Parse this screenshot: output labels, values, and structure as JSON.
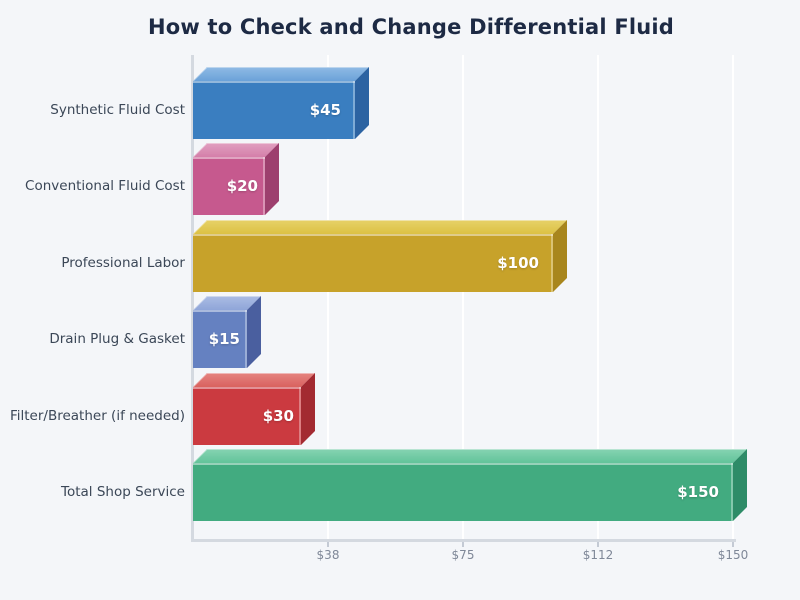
{
  "title": "How to Check and Change Differential Fluid",
  "background_color": "#f4f6f9",
  "title_color": "#1d2a44",
  "category_label_color": "#3b4757",
  "tick_label_color": "#7f8898",
  "gridline_color": "#ffffff",
  "axis_line_color": "#d4d9e0",
  "chart_data": {
    "type": "bar",
    "orientation": "horizontal",
    "title": "How to Check and Change Differential Fluid",
    "xlabel": "",
    "ylabel": "",
    "xlim": [
      0,
      150
    ],
    "grid": "vertical white gridlines on light gray background",
    "legend": "none",
    "categories": [
      "Synthetic Fluid Cost",
      "Conventional Fluid Cost",
      "Professional Labor",
      "Drain Plug & Gasket",
      "Filter/Breather (if needed)",
      "Total Shop Service"
    ],
    "values": [
      45,
      20,
      100,
      15,
      30,
      150
    ],
    "value_labels": [
      "$45",
      "$20",
      "$100",
      "$15",
      "$30",
      "$150"
    ],
    "x_ticks": [
      {
        "value": 37.5,
        "label": "$38"
      },
      {
        "value": 75,
        "label": "$75"
      },
      {
        "value": 112.5,
        "label": "$112"
      },
      {
        "value": 150,
        "label": "$150"
      }
    ],
    "bar_style": "3d-extruded",
    "bar_colors": [
      {
        "front": "#3a7ec0",
        "top": "#6ba2d8",
        "top_light": "#8db9e4",
        "side": "#2c63a2"
      },
      {
        "front": "#c6598e",
        "top": "#d47fa9",
        "top_light": "#e09dbf",
        "side": "#9d3f6e"
      },
      {
        "front": "#c7a22a",
        "top": "#dcc143",
        "top_light": "#e6d066",
        "side": "#a8861d"
      },
      {
        "front": "#6581c1",
        "top": "#8fa5d8",
        "top_light": "#a9bbe3",
        "side": "#4a5f9f"
      },
      {
        "front": "#cb3a40",
        "top": "#d9625f",
        "top_light": "#e4817e",
        "side": "#a32a31"
      },
      {
        "front": "#42ab80",
        "top": "#62c39a",
        "top_light": "#83d2b0",
        "side": "#2e8c68"
      }
    ]
  }
}
